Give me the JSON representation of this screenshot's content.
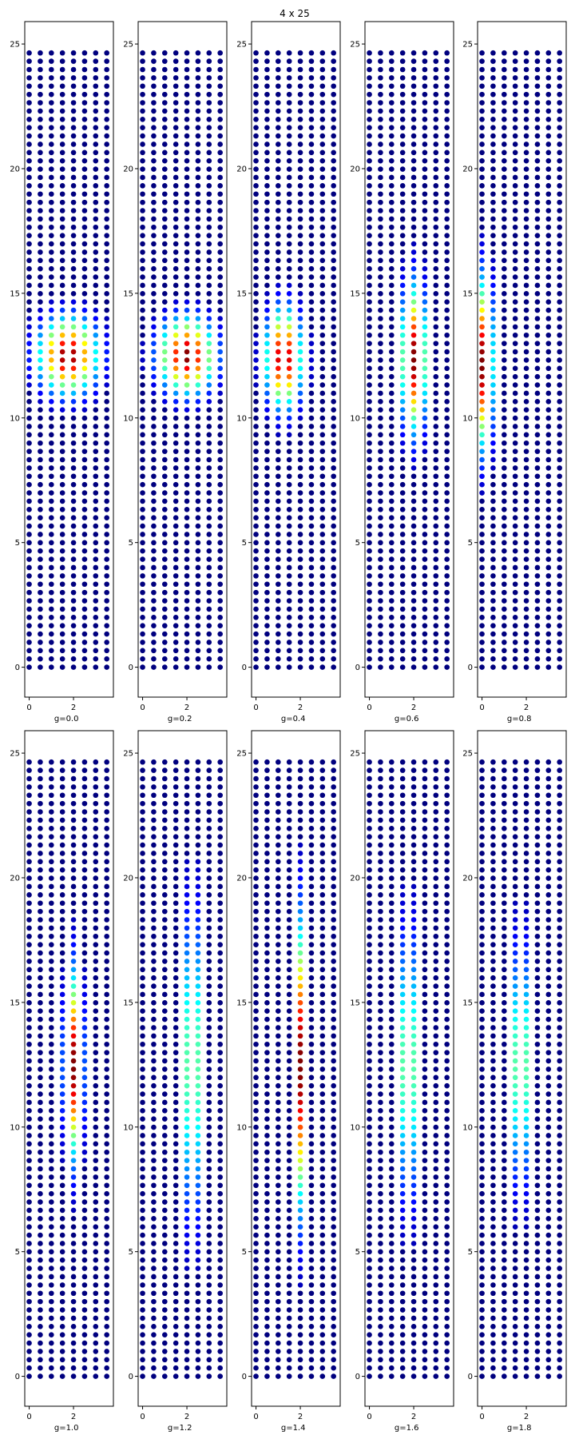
{
  "chart_data": {
    "type": "scatter",
    "title": "4 x 25",
    "colormap": "jet",
    "background_color": "#00007f",
    "grid": false,
    "legend": "none",
    "lattice": {
      "cols": 4,
      "rows": 25,
      "x_step": 0.5,
      "y_step": 0.333
    },
    "xlim": [
      -0.2,
      3.8
    ],
    "ylim": [
      -1.2,
      25.9
    ],
    "x_ticks": [
      0,
      2
    ],
    "y_ticks": [
      0,
      5,
      10,
      15,
      20,
      25
    ],
    "panels": [
      {
        "xlabel": "g=0.0",
        "blob": {
          "x": 1.75,
          "y": 12.5,
          "sx": 0.9,
          "sy": 1.0,
          "peak": 1.0
        }
      },
      {
        "xlabel": "g=0.2",
        "blob": {
          "x": 2.0,
          "y": 12.5,
          "sx": 0.85,
          "sy": 1.0,
          "peak": 1.0
        }
      },
      {
        "xlabel": "g=0.4",
        "blob": {
          "x": 1.25,
          "y": 12.4,
          "sx": 0.55,
          "sy": 1.3,
          "peak": 1.0
        }
      },
      {
        "xlabel": "g=0.6",
        "blob": {
          "x": 2.0,
          "y": 12.4,
          "sx": 0.4,
          "sy": 1.9,
          "peak": 1.0
        }
      },
      {
        "xlabel": "g=0.8",
        "blob": {
          "x": 0.0,
          "y": 12.2,
          "sx": 0.35,
          "sy": 2.2,
          "peak": 1.0
        }
      },
      {
        "xlabel": "g=1.0",
        "blob": {
          "x": 2.0,
          "y": 12.5,
          "sx": 0.28,
          "sy": 2.4,
          "peak": 1.0
        }
      },
      {
        "xlabel": "g=1.2",
        "blob": {
          "x": 2.25,
          "y": 12.5,
          "sx": 0.2,
          "sy": 4.0,
          "peak": 1.0
        }
      },
      {
        "xlabel": "g=1.4",
        "blob": {
          "x": 2.0,
          "y": 12.5,
          "sx": 0.2,
          "sy": 3.7,
          "peak": 1.0
        }
      },
      {
        "xlabel": "g=1.6",
        "blob": {
          "x": 1.75,
          "y": 12.5,
          "sx": 0.2,
          "sy": 3.5,
          "peak": 1.0
        }
      },
      {
        "xlabel": "g=1.8",
        "blob": {
          "x": 1.75,
          "y": 12.5,
          "sx": 0.2,
          "sy": 3.1,
          "peak": 1.0
        }
      }
    ]
  }
}
